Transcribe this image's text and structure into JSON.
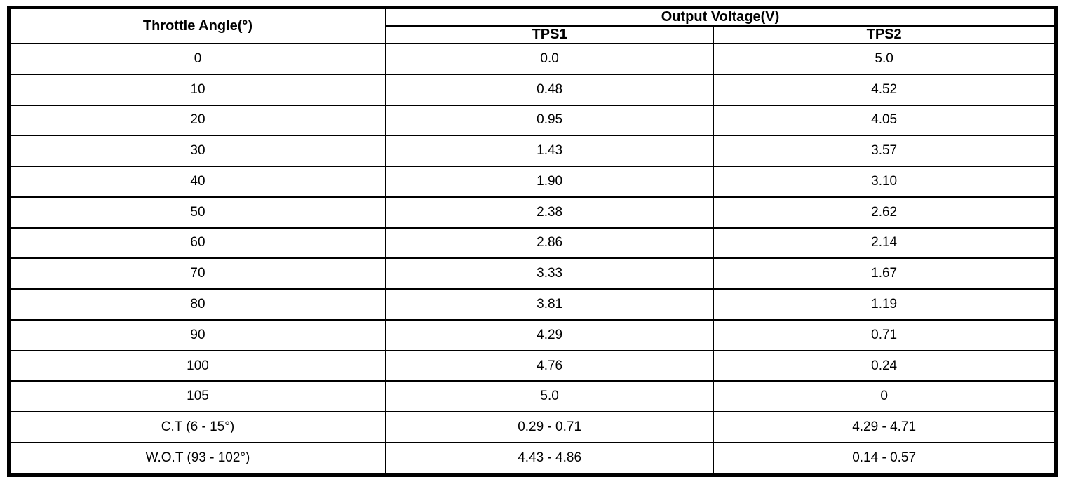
{
  "chart_data": {
    "type": "table",
    "header": {
      "throttle_angle": "Throttle Angle(°)",
      "output_voltage_group": "Output Voltage(V)",
      "tps1": "TPS1",
      "tps2": "TPS2"
    },
    "columns": [
      "Throttle Angle(°)",
      "TPS1",
      "TPS2"
    ],
    "column_group": {
      "label": "Output Voltage(V)",
      "spans": [
        "TPS1",
        "TPS2"
      ]
    },
    "rows": [
      {
        "angle": "0",
        "tps1": "0.0",
        "tps2": "5.0"
      },
      {
        "angle": "10",
        "tps1": "0.48",
        "tps2": "4.52"
      },
      {
        "angle": "20",
        "tps1": "0.95",
        "tps2": "4.05"
      },
      {
        "angle": "30",
        "tps1": "1.43",
        "tps2": "3.57"
      },
      {
        "angle": "40",
        "tps1": "1.90",
        "tps2": "3.10"
      },
      {
        "angle": "50",
        "tps1": "2.38",
        "tps2": "2.62"
      },
      {
        "angle": "60",
        "tps1": "2.86",
        "tps2": "2.14"
      },
      {
        "angle": "70",
        "tps1": "3.33",
        "tps2": "1.67"
      },
      {
        "angle": "80",
        "tps1": "3.81",
        "tps2": "1.19"
      },
      {
        "angle": "90",
        "tps1": "4.29",
        "tps2": "0.71"
      },
      {
        "angle": "100",
        "tps1": "4.76",
        "tps2": "0.24"
      },
      {
        "angle": "105",
        "tps1": "5.0",
        "tps2": "0"
      },
      {
        "angle": "C.T (6 - 15°)",
        "tps1": "0.29 - 0.71",
        "tps2": "4.29 - 4.71"
      },
      {
        "angle": "W.O.T (93 - 102°)",
        "tps1": "4.43 - 4.86",
        "tps2": "0.14 - 0.57"
      }
    ],
    "colors": {
      "border": "#000000",
      "background": "#ffffff",
      "text": "#000000"
    }
  }
}
